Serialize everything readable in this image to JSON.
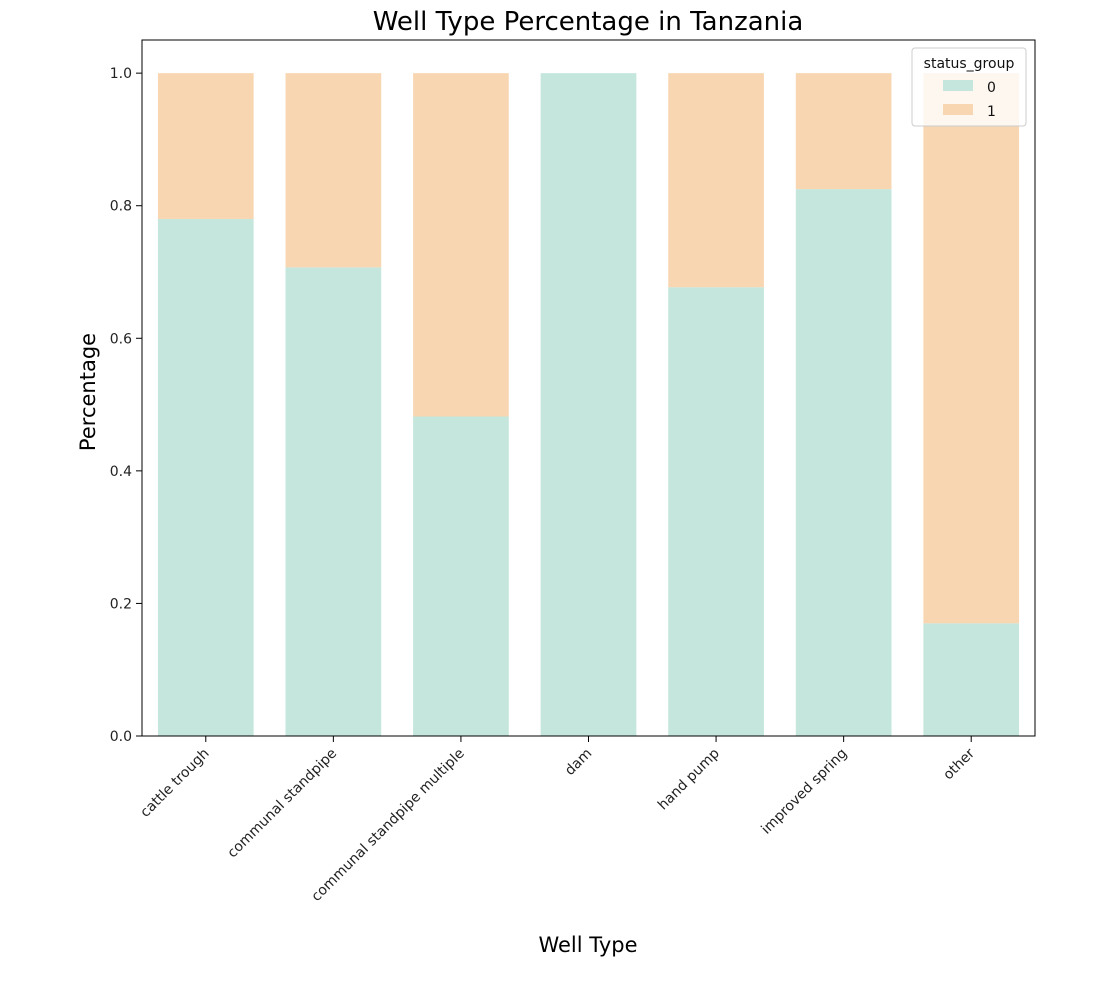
{
  "chart_data": {
    "type": "bar",
    "stacked": true,
    "title": "Well Type Percentage in Tanzania",
    "xlabel": "Well Type",
    "ylabel": "Percentage",
    "ylim": [
      0,
      1.05
    ],
    "yticks": [
      "0.0",
      "0.2",
      "0.4",
      "0.6",
      "0.8",
      "1.0"
    ],
    "categories": [
      "cattle trough",
      "communal standpipe",
      "communal standpipe multiple",
      "dam",
      "hand pump",
      "improved spring",
      "other"
    ],
    "series": [
      {
        "name": "0",
        "color": "#c4e6dc",
        "values": [
          0.78,
          0.707,
          0.482,
          1.0,
          0.677,
          0.825,
          0.17
        ]
      },
      {
        "name": "1",
        "color": "#f8d6b2",
        "values": [
          0.22,
          0.293,
          0.518,
          0.0,
          0.323,
          0.175,
          0.83
        ]
      }
    ],
    "legend": {
      "title": "status_group",
      "placement": "top-right"
    },
    "grid": false
  }
}
